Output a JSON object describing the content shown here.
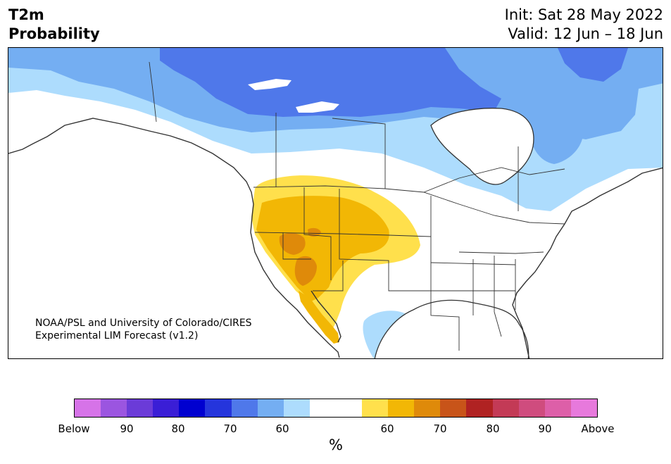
{
  "header": {
    "title_line1": "T2m",
    "title_line2": "Probability",
    "init": "Init: Sat 28 May 2022",
    "valid": "Valid: 12 Jun – 18 Jun"
  },
  "map": {
    "credit_line1": "NOAA/PSL and University of Colorado/CIRES",
    "credit_line2": "Experimental LIM Forecast (v1.2)"
  },
  "colorbar": {
    "colors": [
      "#d673e8",
      "#9b55e0",
      "#6b3bd8",
      "#3a1ed6",
      "#0000d0",
      "#2535dc",
      "#4f78ea",
      "#74aef2",
      "#addcfd",
      "#ffffff",
      "#ffffff",
      "#ffe04c",
      "#f2b705",
      "#df8a0a",
      "#c85419",
      "#b02222",
      "#c33a56",
      "#cf4c7e",
      "#dd5fa8",
      "#e779dc"
    ],
    "tick_labels": [
      "Below",
      "90",
      "80",
      "70",
      "60",
      "60",
      "70",
      "80",
      "90",
      "Above"
    ],
    "unit": "%"
  },
  "legend": {
    "below_60": "#addcfd",
    "below_70": "#74aef2",
    "below_80": "#4f78ea",
    "above_60": "#ffe04c",
    "above_70": "#f2b705",
    "above_80": "#df8a0a"
  }
}
